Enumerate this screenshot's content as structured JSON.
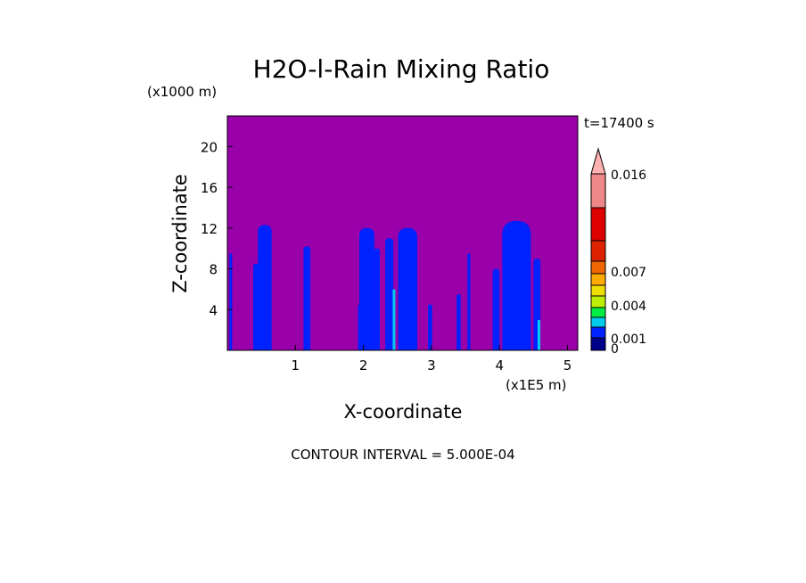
{
  "chart_data": {
    "type": "heatmap",
    "title": "H2O-l-Rain Mixing Ratio",
    "time_label": "t=17400 s",
    "y_scale_label": "(x1000 m)",
    "x_scale_label": "(x1E5 m)",
    "xlabel": "X-coordinate",
    "ylabel": "Z-coordinate",
    "footer": "CONTOUR INTERVAL = 5.000E-04",
    "xlim": [
      0,
      5.15
    ],
    "ylim": [
      0,
      23
    ],
    "x_ticks": [
      "1",
      "2",
      "3",
      "4",
      "5"
    ],
    "x_tick_values": [
      1,
      2,
      3,
      4,
      5
    ],
    "y_ticks": [
      "4",
      "8",
      "12",
      "16",
      "20"
    ],
    "y_tick_values": [
      4,
      8,
      12,
      16,
      20
    ],
    "background_color": "#9900aa",
    "colorbar": {
      "levels": [
        0,
        0.0005,
        0.001,
        0.002,
        0.003,
        0.004,
        0.005,
        0.006,
        0.007,
        0.01,
        0.013,
        0.016
      ],
      "colors": [
        "#00008b",
        "#0022ff",
        "#00ccee",
        "#00ee44",
        "#bbee00",
        "#eedd00",
        "#ffaa00",
        "#ee6600",
        "#dd2200",
        "#dd0000",
        "#ee8888",
        "#ffb0b0"
      ],
      "labels": [
        "0",
        "0.001",
        "0.004",
        "0.007",
        "0.016"
      ],
      "label_values": [
        0,
        0.001,
        0.004,
        0.007,
        0.016
      ]
    },
    "cells": [
      {
        "x": 0.05,
        "z_top": 9.5,
        "width": 0.04,
        "value": 0.0005
      },
      {
        "x": 0.42,
        "z_top": 8.5,
        "width": 0.08,
        "value": 0.0005
      },
      {
        "x": 0.55,
        "z_top": 12.3,
        "width": 0.2,
        "value": 0.0005
      },
      {
        "x": 1.17,
        "z_top": 10.2,
        "width": 0.1,
        "value": 0.0005
      },
      {
        "x": 1.95,
        "z_top": 4.5,
        "width": 0.06,
        "value": 0.0005
      },
      {
        "x": 2.05,
        "z_top": 12.0,
        "width": 0.22,
        "value": 0.0005
      },
      {
        "x": 2.2,
        "z_top": 10.0,
        "width": 0.08,
        "value": 0.0005
      },
      {
        "x": 2.38,
        "z_top": 11.0,
        "width": 0.12,
        "value": 0.0005
      },
      {
        "x": 2.45,
        "z_top": 6.0,
        "width": 0.04,
        "value": 0.001
      },
      {
        "x": 2.65,
        "z_top": 12.0,
        "width": 0.28,
        "value": 0.0005
      },
      {
        "x": 2.62,
        "z_top": 4.5,
        "width": 0.06,
        "value": 0.0005
      },
      {
        "x": 2.98,
        "z_top": 4.5,
        "width": 0.06,
        "value": 0.0005
      },
      {
        "x": 3.4,
        "z_top": 5.5,
        "width": 0.06,
        "value": 0.0005
      },
      {
        "x": 3.55,
        "z_top": 9.5,
        "width": 0.04,
        "value": 0.0005
      },
      {
        "x": 3.95,
        "z_top": 8.0,
        "width": 0.1,
        "value": 0.0005
      },
      {
        "x": 4.25,
        "z_top": 12.7,
        "width": 0.42,
        "value": 0.0005
      },
      {
        "x": 4.2,
        "z_top": 5.0,
        "width": 0.14,
        "value": 0.0005
      },
      {
        "x": 4.55,
        "z_top": 9.0,
        "width": 0.1,
        "value": 0.0005
      },
      {
        "x": 4.58,
        "z_top": 3.0,
        "width": 0.04,
        "value": 0.001
      }
    ]
  }
}
